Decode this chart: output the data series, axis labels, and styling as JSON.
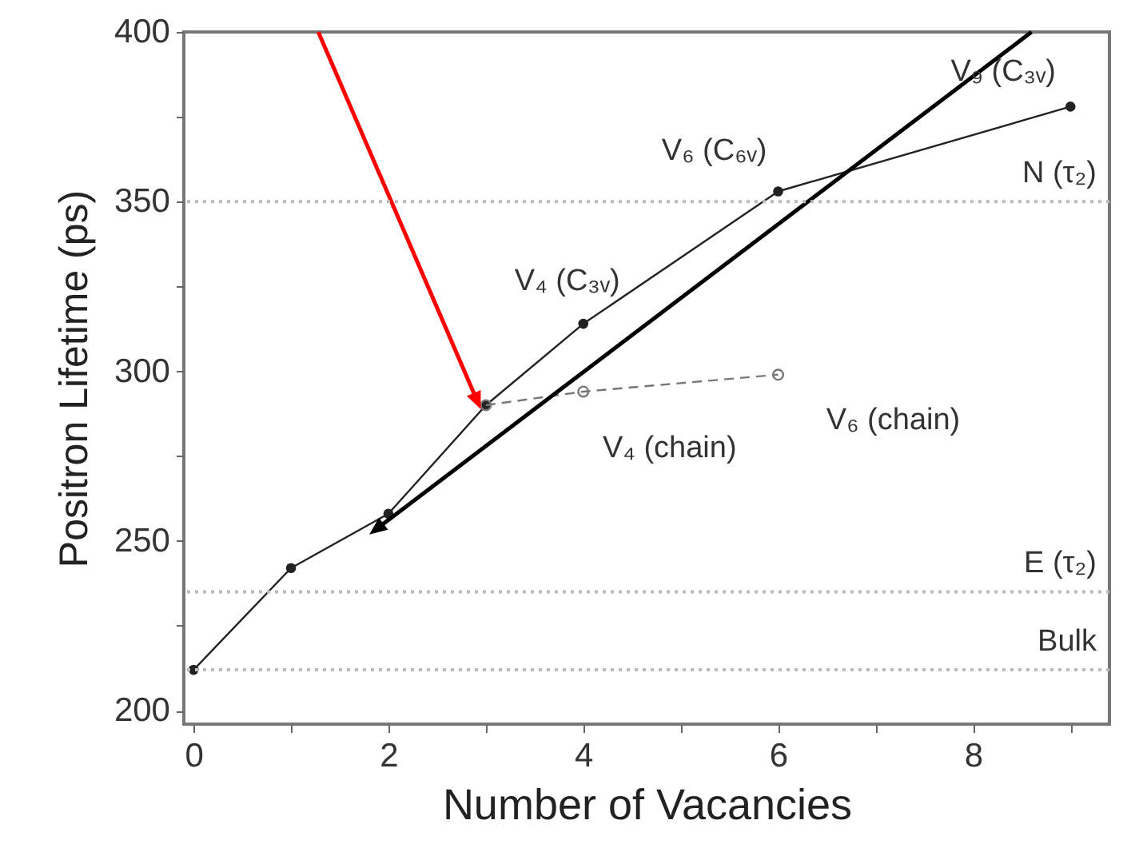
{
  "chart_data": {
    "type": "line",
    "xlabel": "Number of Vacancies",
    "ylabel": "Positron Lifetime (ps)",
    "xlim": [
      -0.1,
      9.4
    ],
    "ylim": [
      196,
      400
    ],
    "xticks": [
      0,
      {
        "value": 1,
        "label": null
      },
      2,
      {
        "value": 3,
        "label": null
      },
      4,
      {
        "value": 5,
        "label": null
      },
      6,
      {
        "value": 7,
        "label": null
      },
      8,
      {
        "value": 9,
        "label": null
      }
    ],
    "yticks": [
      200,
      {
        "value": 225,
        "label": null
      },
      250,
      {
        "value": 275,
        "label": null
      },
      300,
      {
        "value": 325,
        "label": null
      },
      350,
      {
        "value": 375,
        "label": null
      },
      400
    ],
    "series": [
      {
        "color": "#222222",
        "marker": "circle",
        "line_style": "solid",
        "x": [
          0,
          1,
          2,
          3,
          4,
          6,
          9
        ],
        "values": [
          212,
          242,
          258,
          290,
          314,
          353,
          378
        ]
      },
      {
        "color": "#777777",
        "marker": "circle",
        "line_style": "dashed",
        "x": [
          3,
          4,
          6
        ],
        "values": [
          290,
          294,
          299
        ]
      },
      {
        "color": "#000000",
        "marker": "triangle",
        "line_style": "solid",
        "x": [
          8.6,
          1.9
        ],
        "values": [
          400,
          254
        ]
      },
      {
        "color": "#ff0000",
        "marker": "triangle",
        "line_style": "solid",
        "x": [
          1.28,
          2.9
        ],
        "values": [
          400,
          292
        ]
      }
    ],
    "ref_lines": [
      {
        "axis": "y",
        "value": 350,
        "label": "N  (τ₂)",
        "color": "#bbbbbb",
        "line_style": "dotted"
      },
      {
        "axis": "y",
        "value": 235,
        "label": "E  (τ₂)",
        "color": "#bbbbbb",
        "line_style": "dotted"
      },
      {
        "axis": "y",
        "value": 212,
        "label": "Bulk",
        "color": "#bbbbbb",
        "line_style": "dotted"
      }
    ],
    "annotations": [
      {
        "text": "V₄ (C₃ᵥ)",
        "x": 4,
        "y": 314
      },
      {
        "text": "V₆ (C₆ᵥ)",
        "x": 6,
        "y": 353
      },
      {
        "text": "V₉ (C₃ᵥ)",
        "x": 9,
        "y": 378
      },
      {
        "text": "V₄ (chain)",
        "x": 4,
        "y": 294
      },
      {
        "text": "V₆ (chain)",
        "x": 6,
        "y": 299
      }
    ],
    "grid": false
  }
}
